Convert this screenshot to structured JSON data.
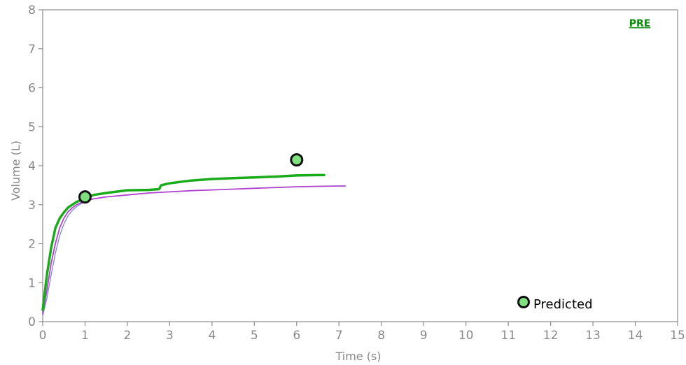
{
  "chart_data": {
    "type": "line",
    "xlabel": "Time (s)",
    "ylabel": "Volume (L)",
    "xlim": [
      0,
      15
    ],
    "ylim": [
      0,
      8
    ],
    "x_ticks": [
      "0",
      "1",
      "2",
      "3",
      "4",
      "5",
      "6",
      "7",
      "8",
      "9",
      "10",
      "11",
      "12",
      "13",
      "14",
      "15"
    ],
    "y_ticks": [
      "0",
      "1",
      "2",
      "3",
      "4",
      "5",
      "6",
      "7",
      "8"
    ],
    "grid": false,
    "tag": "PRE",
    "series": [
      {
        "color": "#1aab1a",
        "x": [
          0,
          0.1,
          0.2,
          0.3,
          0.4,
          0.5,
          0.6,
          0.7,
          0.8,
          0.9,
          1.0,
          1.2,
          1.5,
          2.0,
          2.5,
          2.75,
          2.8,
          3.0,
          3.5,
          4.0,
          4.5,
          5.0,
          5.5,
          6.0,
          6.5,
          6.65
        ],
        "y": [
          0.3,
          1.2,
          1.9,
          2.4,
          2.65,
          2.8,
          2.93,
          3.0,
          3.07,
          3.12,
          3.17,
          3.25,
          3.3,
          3.37,
          3.38,
          3.4,
          3.5,
          3.55,
          3.62,
          3.66,
          3.68,
          3.7,
          3.72,
          3.75,
          3.76,
          3.76
        ]
      },
      {
        "color": "#b040d0",
        "x": [
          0,
          0.1,
          0.2,
          0.3,
          0.4,
          0.5,
          0.6,
          0.7,
          0.8,
          0.9,
          1.0,
          1.2,
          1.5,
          2.0,
          2.5,
          3.0,
          3.5,
          4.0,
          4.5,
          5.0,
          5.5,
          6.0,
          6.5,
          7.0,
          7.15
        ],
        "y": [
          0.2,
          0.8,
          1.5,
          2.0,
          2.4,
          2.65,
          2.82,
          2.92,
          3.0,
          3.05,
          3.1,
          3.15,
          3.2,
          3.25,
          3.3,
          3.33,
          3.36,
          3.38,
          3.4,
          3.42,
          3.44,
          3.46,
          3.47,
          3.48,
          3.48
        ]
      },
      {
        "color": "#7a7ae0",
        "x": [
          0,
          0.1,
          0.2,
          0.3,
          0.4,
          0.5,
          0.6,
          0.7,
          0.8,
          0.9,
          1.0,
          1.2,
          1.5
        ],
        "y": [
          0.15,
          0.6,
          1.2,
          1.75,
          2.2,
          2.5,
          2.72,
          2.85,
          2.95,
          3.02,
          3.08,
          3.15,
          3.2
        ]
      }
    ],
    "predicted_points": [
      {
        "x": 1.0,
        "y": 3.2
      },
      {
        "x": 6.0,
        "y": 4.15
      }
    ],
    "legend": {
      "label": "Predicted",
      "position": "bottom-right"
    },
    "colors": {
      "axis": "#8c8c8c",
      "marker_fill": "#7ee07e",
      "marker_stroke": "#111111"
    }
  }
}
